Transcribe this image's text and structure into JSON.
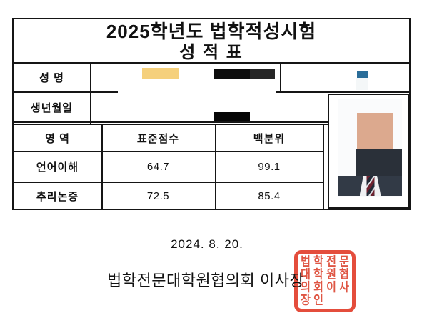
{
  "report": {
    "title_line1": "2025학년도 법학적성시험",
    "title_line2": "성   적   표",
    "name_label": "성  명",
    "dob_label": "생년월일",
    "table": {
      "area_header": "영  역",
      "standard_score_header": "표준점수",
      "percentile_header": "백분위",
      "rows": [
        {
          "area": "언어이해",
          "standard_score": "64.7",
          "percentile": "99.1"
        },
        {
          "area": "추리논증",
          "standard_score": "72.5",
          "percentile": "85.4"
        }
      ]
    },
    "date": "2024.  8.  20.",
    "issuer": "법학전문대학원협의회 이사장",
    "seal_text": "법학전문대학원협의회이사장인"
  },
  "colors": {
    "table_border": "#151515",
    "redaction_yellow": "#f5d07c",
    "redaction_black_dark": "#0d0d0d",
    "redaction_black_light": "#262626",
    "dob_redaction_black": "#060606",
    "blue_mark": "#2a6d99",
    "photo_skin": "#dca98e",
    "photo_suit_block": "#2a3039",
    "photo_suit": "#323a46",
    "photo_shirt": "#f0f1f3",
    "tie_stripe_red": "#6e2230",
    "tie_stripe_navy": "#222a37",
    "tie_stripe_light": "#d8dbe0",
    "seal_border_red": "#e2402e",
    "seal_glyph_red": "#dd4a36"
  }
}
